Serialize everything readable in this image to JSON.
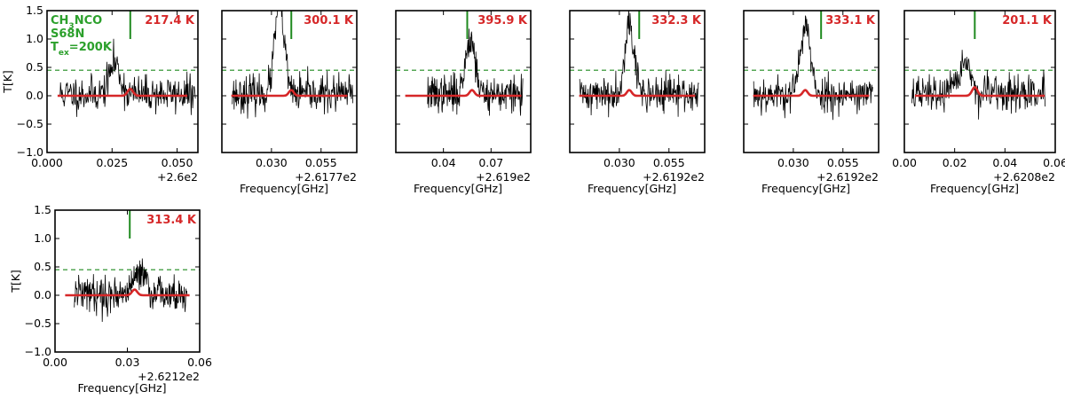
{
  "figure": {
    "molecule_label": {
      "lines": [
        {
          "text": "CH",
          "sub": "3",
          "rest": "NCO"
        },
        {
          "text": "S68N"
        },
        {
          "text": "T",
          "sub": "ex",
          "rest": "=200K"
        }
      ]
    },
    "colors": {
      "observed": "#000000",
      "model": "#d62728",
      "marker": "#1f8a1f",
      "threshold": "#1f8a1f",
      "energy_text": "#d62728",
      "molecule_text": "#2ca02c"
    }
  },
  "chart_data": [
    {
      "type": "line",
      "energy_label": "217.4 K",
      "xlim": [
        0.0,
        0.058
      ],
      "ylim": [
        -1.0,
        1.5
      ],
      "xticks": [
        0.0,
        0.025,
        0.05
      ],
      "xtick_labels": [
        "0.000",
        "0.025",
        "0.050"
      ],
      "yticks": [
        -1.0,
        -0.5,
        0.0,
        0.5,
        1.0,
        1.5
      ],
      "ytick_labels": [
        "−1.0",
        "−0.5",
        "0.0",
        "0.5",
        "1.0",
        "1.5"
      ],
      "offset_label": "+2.6e2",
      "xlabel": "",
      "ylabel": "T[K]",
      "threshold": 0.45,
      "marker_x": 0.032,
      "line_center": 0.032,
      "model_peak": 0.12,
      "obs_peak": 0.55,
      "obs_peak_x": 0.026,
      "spectrum_range": [
        0.005,
        0.057
      ],
      "seed": 11
    },
    {
      "type": "line",
      "energy_label": "300.1 K",
      "xlim": [
        0.005,
        0.073
      ],
      "ylim": [
        -1.0,
        1.5
      ],
      "xticks": [
        0.03,
        0.055
      ],
      "xtick_labels": [
        "0.030",
        "0.055"
      ],
      "yticks": [
        -1.0,
        -0.5,
        0.0,
        0.5,
        1.0,
        1.5
      ],
      "ytick_labels": [],
      "offset_label": "+2.6177e2",
      "xlabel": "Frequency[GHz]",
      "ylabel": "",
      "threshold": 0.45,
      "marker_x": 0.04,
      "line_center": 0.04,
      "model_peak": 0.1,
      "obs_peak": 1.6,
      "obs_peak_x": 0.034,
      "spectrum_range": [
        0.01,
        0.071
      ],
      "seed": 23
    },
    {
      "type": "line",
      "energy_label": "395.9 K",
      "xlim": [
        0.01,
        0.095
      ],
      "ylim": [
        -1.0,
        1.5
      ],
      "xticks": [
        0.04,
        0.07
      ],
      "xtick_labels": [
        "0.04",
        "0.07"
      ],
      "yticks": [
        -1.0,
        -0.5,
        0.0,
        0.5,
        1.0,
        1.5
      ],
      "ytick_labels": [],
      "offset_label": "+2.619e2",
      "xlabel": "Frequency[GHz]",
      "ylabel": "",
      "threshold": 0.45,
      "marker_x": 0.055,
      "line_center": 0.058,
      "model_peak": 0.1,
      "obs_peak": 1.0,
      "obs_peak_x": 0.057,
      "spectrum_range": [
        0.03,
        0.09
      ],
      "seed": 37
    },
    {
      "type": "line",
      "energy_label": "332.3 K",
      "xlim": [
        0.005,
        0.073
      ],
      "ylim": [
        -1.0,
        1.5
      ],
      "xticks": [
        0.03,
        0.055
      ],
      "xtick_labels": [
        "0.030",
        "0.055"
      ],
      "yticks": [
        -1.0,
        -0.5,
        0.0,
        0.5,
        1.0,
        1.5
      ],
      "ytick_labels": [],
      "offset_label": "+2.6192e2",
      "xlabel": "Frequency[GHz]",
      "ylabel": "",
      "threshold": 0.45,
      "marker_x": 0.04,
      "line_center": 0.035,
      "model_peak": 0.1,
      "obs_peak": 1.25,
      "obs_peak_x": 0.035,
      "spectrum_range": [
        0.01,
        0.07
      ],
      "seed": 41
    },
    {
      "type": "line",
      "energy_label": "333.1 K",
      "xlim": [
        0.005,
        0.073
      ],
      "ylim": [
        -1.0,
        1.5
      ],
      "xticks": [
        0.03,
        0.055
      ],
      "xtick_labels": [
        "0.030",
        "0.055"
      ],
      "yticks": [
        -1.0,
        -0.5,
        0.0,
        0.5,
        1.0,
        1.5
      ],
      "ytick_labels": [],
      "offset_label": "+2.6192e2",
      "xlabel": "Frequency[GHz]",
      "ylabel": "",
      "threshold": 0.45,
      "marker_x": 0.044,
      "line_center": 0.036,
      "model_peak": 0.1,
      "obs_peak": 1.25,
      "obs_peak_x": 0.036,
      "spectrum_range": [
        0.01,
        0.07
      ],
      "seed": 53
    },
    {
      "type": "line",
      "energy_label": "201.1 K",
      "xlim": [
        0.0,
        0.06
      ],
      "ylim": [
        -1.0,
        1.5
      ],
      "xticks": [
        0.0,
        0.02,
        0.04,
        0.06
      ],
      "xtick_labels": [
        "0.00",
        "0.02",
        "0.04",
        "0.06"
      ],
      "yticks": [
        -1.0,
        -0.5,
        0.0,
        0.5,
        1.0,
        1.5
      ],
      "ytick_labels": [],
      "offset_label": "+2.6208e2",
      "xlabel": "Frequency[GHz]",
      "ylabel": "",
      "threshold": 0.45,
      "marker_x": 0.028,
      "line_center": 0.028,
      "model_peak": 0.15,
      "obs_peak": 0.6,
      "obs_peak_x": 0.024,
      "spectrum_range": [
        0.003,
        0.056
      ],
      "seed": 67
    },
    {
      "type": "line",
      "energy_label": "313.4 K",
      "xlim": [
        0.0,
        0.06
      ],
      "ylim": [
        -1.0,
        1.5
      ],
      "xticks": [
        0.0,
        0.03,
        0.06
      ],
      "xtick_labels": [
        "0.00",
        "0.03",
        "0.06"
      ],
      "yticks": [
        -1.0,
        -0.5,
        0.0,
        0.5,
        1.0,
        1.5
      ],
      "ytick_labels": [
        "−1.0",
        "−0.5",
        "0.0",
        "0.5",
        "1.0",
        "1.5"
      ],
      "offset_label": "+2.6212e2",
      "xlabel": "Frequency[GHz]",
      "ylabel": "T[K]",
      "threshold": 0.45,
      "marker_x": 0.031,
      "line_center": 0.033,
      "model_peak": 0.1,
      "obs_peak": 0.45,
      "obs_peak_x": 0.035,
      "spectrum_range": [
        0.008,
        0.055
      ],
      "seed": 79
    }
  ]
}
